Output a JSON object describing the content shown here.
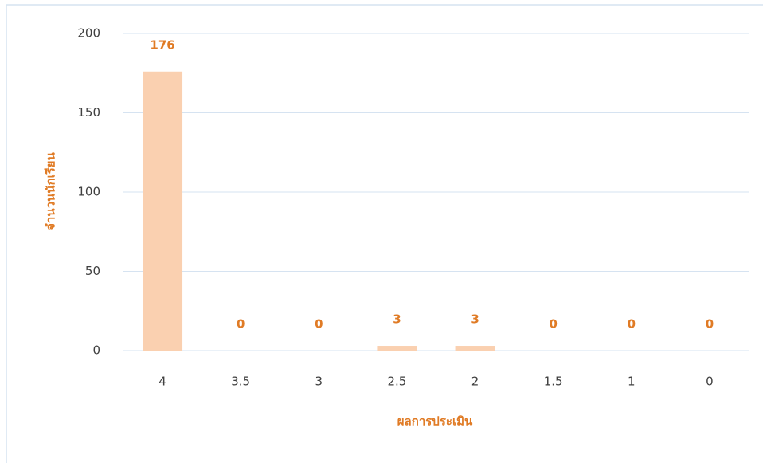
{
  "chart_data": {
    "type": "bar",
    "categories": [
      "4",
      "3.5",
      "3",
      "2.5",
      "2",
      "1.5",
      "1",
      "0"
    ],
    "values": [
      176,
      0,
      0,
      3,
      3,
      0,
      0,
      0
    ],
    "color": "#fad0b0",
    "label_color": "#e07b25",
    "xlabel": "ผลการประเมิน",
    "ylabel": "จำนวนนักเรียน",
    "ylim": [
      0,
      200
    ],
    "yticks": [
      0,
      50,
      100,
      150,
      200
    ],
    "grid": true
  }
}
